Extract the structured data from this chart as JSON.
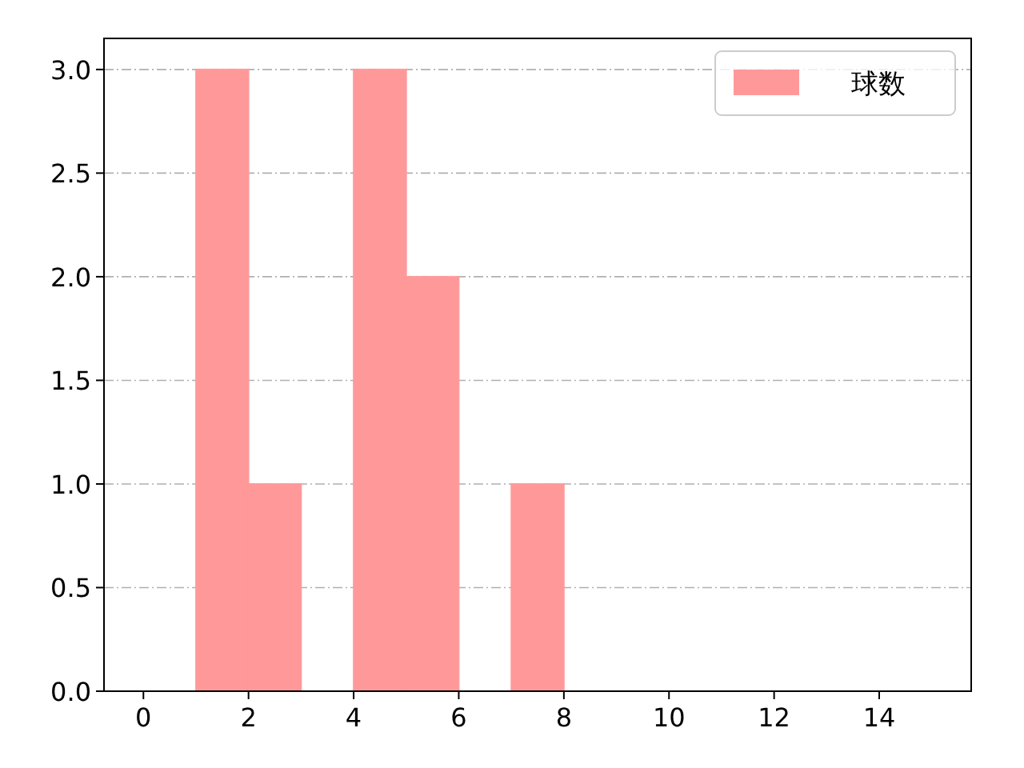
{
  "chart_data": {
    "type": "histogram",
    "bins": [
      1,
      2,
      3,
      4,
      5,
      6,
      7,
      8
    ],
    "series": [
      {
        "name": "球数",
        "color": "#ff9999",
        "values": [
          3,
          1,
          0,
          3,
          2,
          0,
          1
        ]
      }
    ],
    "xlim": [
      -0.75,
      15.75
    ],
    "xticks": [
      0,
      2,
      4,
      6,
      8,
      10,
      12,
      14
    ],
    "ylim": [
      0,
      3.15
    ],
    "yticks": [
      {
        "value": 0,
        "label": "0.0"
      },
      {
        "value": 0.5,
        "label": "0.5"
      },
      {
        "value": 1,
        "label": "1.0"
      },
      {
        "value": 1.5,
        "label": "1.5"
      },
      {
        "value": 2,
        "label": "2.0"
      },
      {
        "value": 2.5,
        "label": "2.5"
      },
      {
        "value": 3,
        "label": "3.0"
      }
    ],
    "grid": "y",
    "legend": "top right"
  }
}
